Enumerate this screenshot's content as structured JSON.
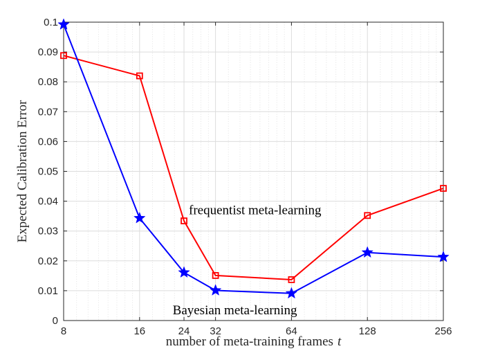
{
  "chart_data": {
    "type": "line",
    "x_scale": "log2",
    "xticks": [
      8,
      16,
      24,
      32,
      64,
      128,
      256
    ],
    "xtick_labels": [
      "8",
      "16",
      "24",
      "32",
      "64",
      "128",
      "256"
    ],
    "xlim": [
      8,
      256
    ],
    "ylim": [
      0,
      0.1
    ],
    "yticks": [
      0,
      0.01,
      0.02,
      0.03,
      0.04,
      0.05,
      0.06,
      0.07,
      0.08,
      0.09,
      0.1
    ],
    "ytick_labels": [
      "0",
      "0.01",
      "0.02",
      "0.03",
      "0.04",
      "0.05",
      "0.06",
      "0.07",
      "0.08",
      "0.09",
      "0.1"
    ],
    "xlabel": "number of meta-training frames",
    "xlabel_var": "t",
    "ylabel": "Expected Calibration Error",
    "grid": true,
    "series": [
      {
        "name": "frequentist meta-learning",
        "color": "#ff0000",
        "marker": "square",
        "x": [
          8,
          16,
          24,
          32,
          64,
          128,
          256
        ],
        "y": [
          0.0888,
          0.082,
          0.0334,
          0.0151,
          0.0137,
          0.0352,
          0.0443
        ]
      },
      {
        "name": "Bayesian meta-learning",
        "color": "#0000ff",
        "marker": "star",
        "x": [
          8,
          16,
          24,
          32,
          64,
          128,
          256
        ],
        "y": [
          0.0992,
          0.0343,
          0.0161,
          0.0101,
          0.0091,
          0.0228,
          0.0213
        ]
      }
    ],
    "annotations": [
      {
        "text": "frequentist meta-learning",
        "series": 0
      },
      {
        "text": "Bayesian meta-learning",
        "series": 1
      }
    ]
  }
}
